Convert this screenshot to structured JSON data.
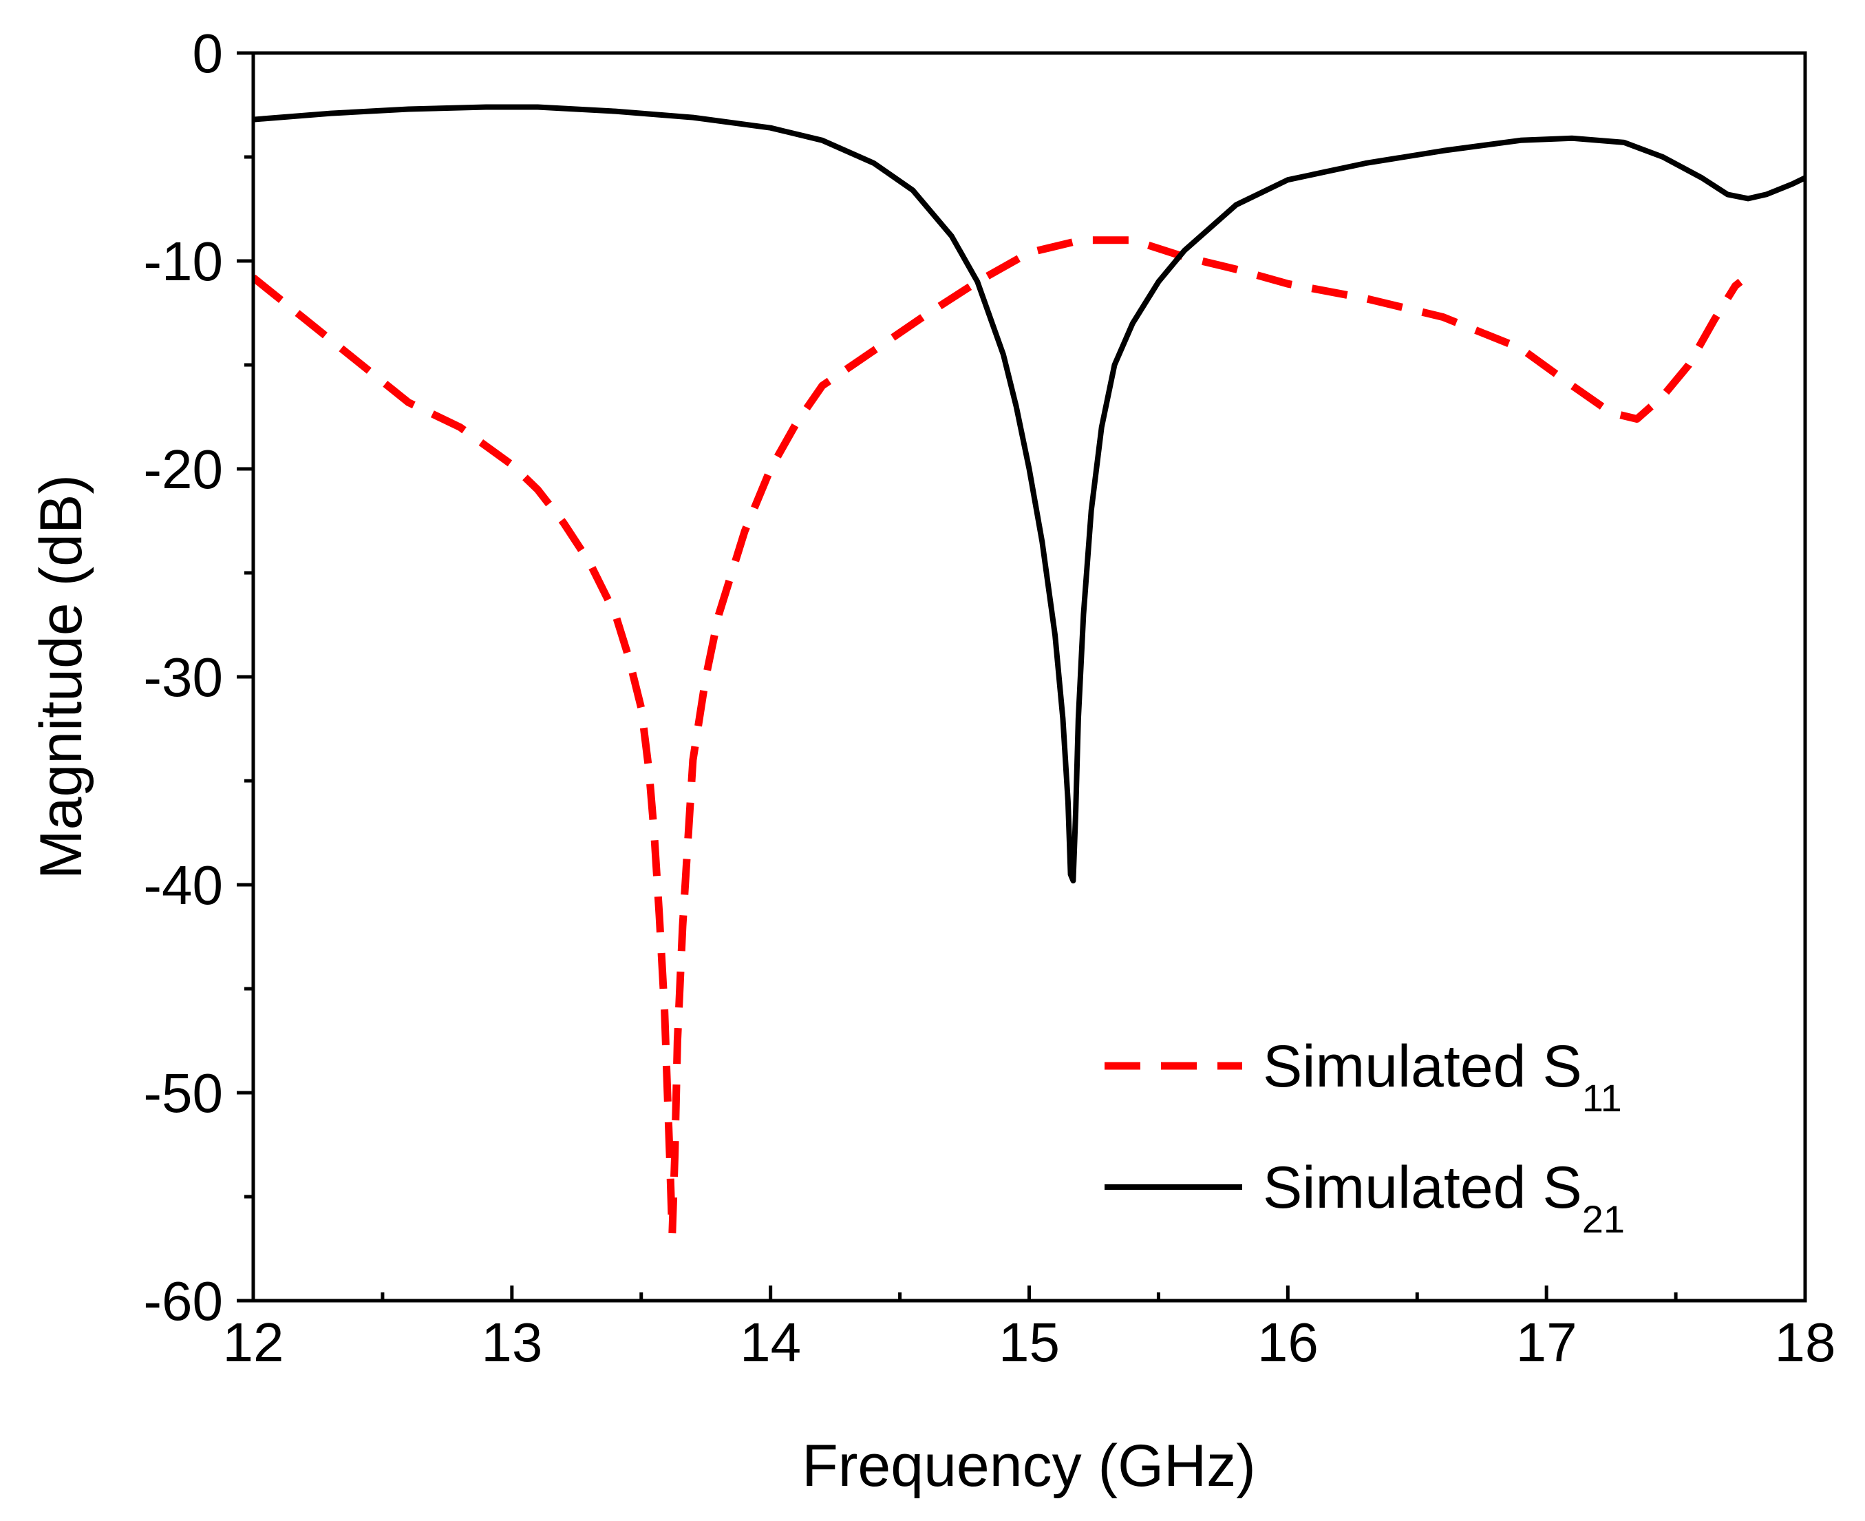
{
  "chart_data": {
    "type": "line",
    "title": "",
    "xlabel": "Frequency (GHz)",
    "ylabel": "Magnitude (dB)",
    "xlim": [
      12,
      18
    ],
    "ylim": [
      -60,
      0
    ],
    "xticks": [
      12,
      13,
      14,
      15,
      16,
      17,
      18
    ],
    "xtick_labels": [
      "12",
      "13",
      "14",
      "15",
      "16",
      "17",
      "18"
    ],
    "x_minor_step": 0.5,
    "yticks": [
      0,
      -10,
      -20,
      -30,
      -40,
      -50,
      -60
    ],
    "ytick_labels": [
      "0",
      "-10",
      "-20",
      "-30",
      "-40",
      "-50",
      "-60"
    ],
    "y_minor_step": 5,
    "grid": false,
    "legend_position": "bottom-right",
    "series": [
      {
        "name": "Simulated S11",
        "label_main": "Simulated S",
        "label_sub": "11",
        "color": "#ff0000",
        "style": "dashed",
        "x": [
          12.0,
          12.2,
          12.4,
          12.6,
          12.8,
          13.0,
          13.1,
          13.2,
          13.3,
          13.4,
          13.45,
          13.5,
          13.53,
          13.55,
          13.57,
          13.59,
          13.6,
          13.61,
          13.62,
          13.63,
          13.64,
          13.66,
          13.68,
          13.7,
          13.75,
          13.8,
          13.9,
          14.0,
          14.1,
          14.2,
          14.4,
          14.6,
          14.8,
          15.0,
          15.2,
          15.4,
          15.6,
          15.8,
          16.0,
          16.3,
          16.6,
          16.9,
          17.1,
          17.25,
          17.35,
          17.45,
          17.55,
          17.65,
          17.73,
          17.75
        ],
        "values": [
          -10.8,
          -12.8,
          -14.8,
          -16.8,
          -18.0,
          -19.8,
          -21.0,
          -22.6,
          -24.5,
          -27.0,
          -29.0,
          -31.5,
          -34.5,
          -37.5,
          -41.5,
          -46.0,
          -49.5,
          -53.0,
          -56.8,
          -53.0,
          -47.5,
          -42.0,
          -38.0,
          -34.0,
          -30.0,
          -27.0,
          -23.0,
          -20.0,
          -17.8,
          -16.0,
          -14.3,
          -12.6,
          -11.0,
          -9.6,
          -9.0,
          -9.0,
          -9.8,
          -10.4,
          -11.1,
          -11.8,
          -12.7,
          -14.2,
          -16.0,
          -17.3,
          -17.6,
          -16.5,
          -15.0,
          -12.8,
          -11.2,
          -11.0
        ]
      },
      {
        "name": "Simulated S21",
        "label_main": "Simulated S",
        "label_sub": "21",
        "color": "#000000",
        "style": "solid",
        "x": [
          12.0,
          12.3,
          12.6,
          12.9,
          13.1,
          13.4,
          13.7,
          14.0,
          14.2,
          14.4,
          14.55,
          14.7,
          14.8,
          14.9,
          14.95,
          15.0,
          15.05,
          15.1,
          15.13,
          15.15,
          15.16,
          15.17,
          15.18,
          15.19,
          15.21,
          15.24,
          15.28,
          15.33,
          15.4,
          15.5,
          15.6,
          15.8,
          16.0,
          16.3,
          16.6,
          16.9,
          17.1,
          17.3,
          17.45,
          17.6,
          17.7,
          17.78,
          17.85,
          17.95,
          18.0
        ],
        "values": [
          -3.2,
          -2.9,
          -2.7,
          -2.6,
          -2.6,
          -2.8,
          -3.1,
          -3.6,
          -4.2,
          -5.3,
          -6.6,
          -8.8,
          -11.0,
          -14.5,
          -17.0,
          -20.0,
          -23.5,
          -28.0,
          -32.0,
          -36.0,
          -39.5,
          -39.8,
          -36.5,
          -32.0,
          -27.0,
          -22.0,
          -18.0,
          -15.0,
          -13.0,
          -11.0,
          -9.5,
          -7.3,
          -6.1,
          -5.3,
          -4.7,
          -4.2,
          -4.1,
          -4.3,
          -5.0,
          -6.0,
          -6.8,
          -7.0,
          -6.8,
          -6.3,
          -6.0
        ]
      }
    ]
  }
}
